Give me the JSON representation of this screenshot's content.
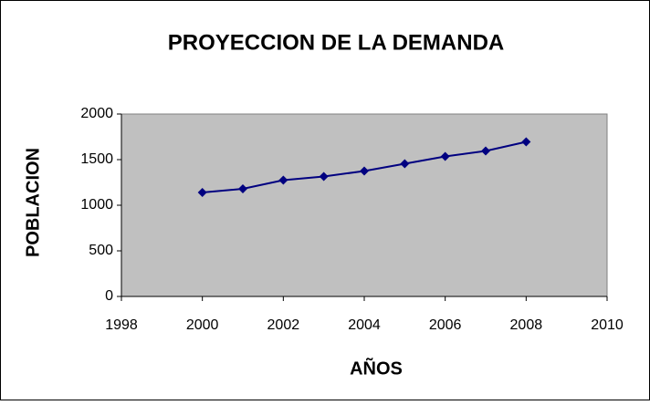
{
  "chart_data": {
    "type": "line",
    "title": "PROYECCION DE LA DEMANDA",
    "x_label": "AÑOS",
    "y_label": "POBLACION",
    "x": [
      2000,
      2001,
      2002,
      2003,
      2004,
      2005,
      2006,
      2007,
      2008
    ],
    "values": [
      1140,
      1180,
      1275,
      1315,
      1375,
      1455,
      1535,
      1595,
      1695
    ],
    "color": "#000080",
    "xlim": [
      1998,
      2010
    ],
    "xticks": [
      1998,
      2000,
      2002,
      2004,
      2006,
      2008,
      2010
    ],
    "ylim": [
      0,
      2000
    ],
    "yticks": [
      0,
      500,
      1000,
      1500,
      2000
    ]
  }
}
